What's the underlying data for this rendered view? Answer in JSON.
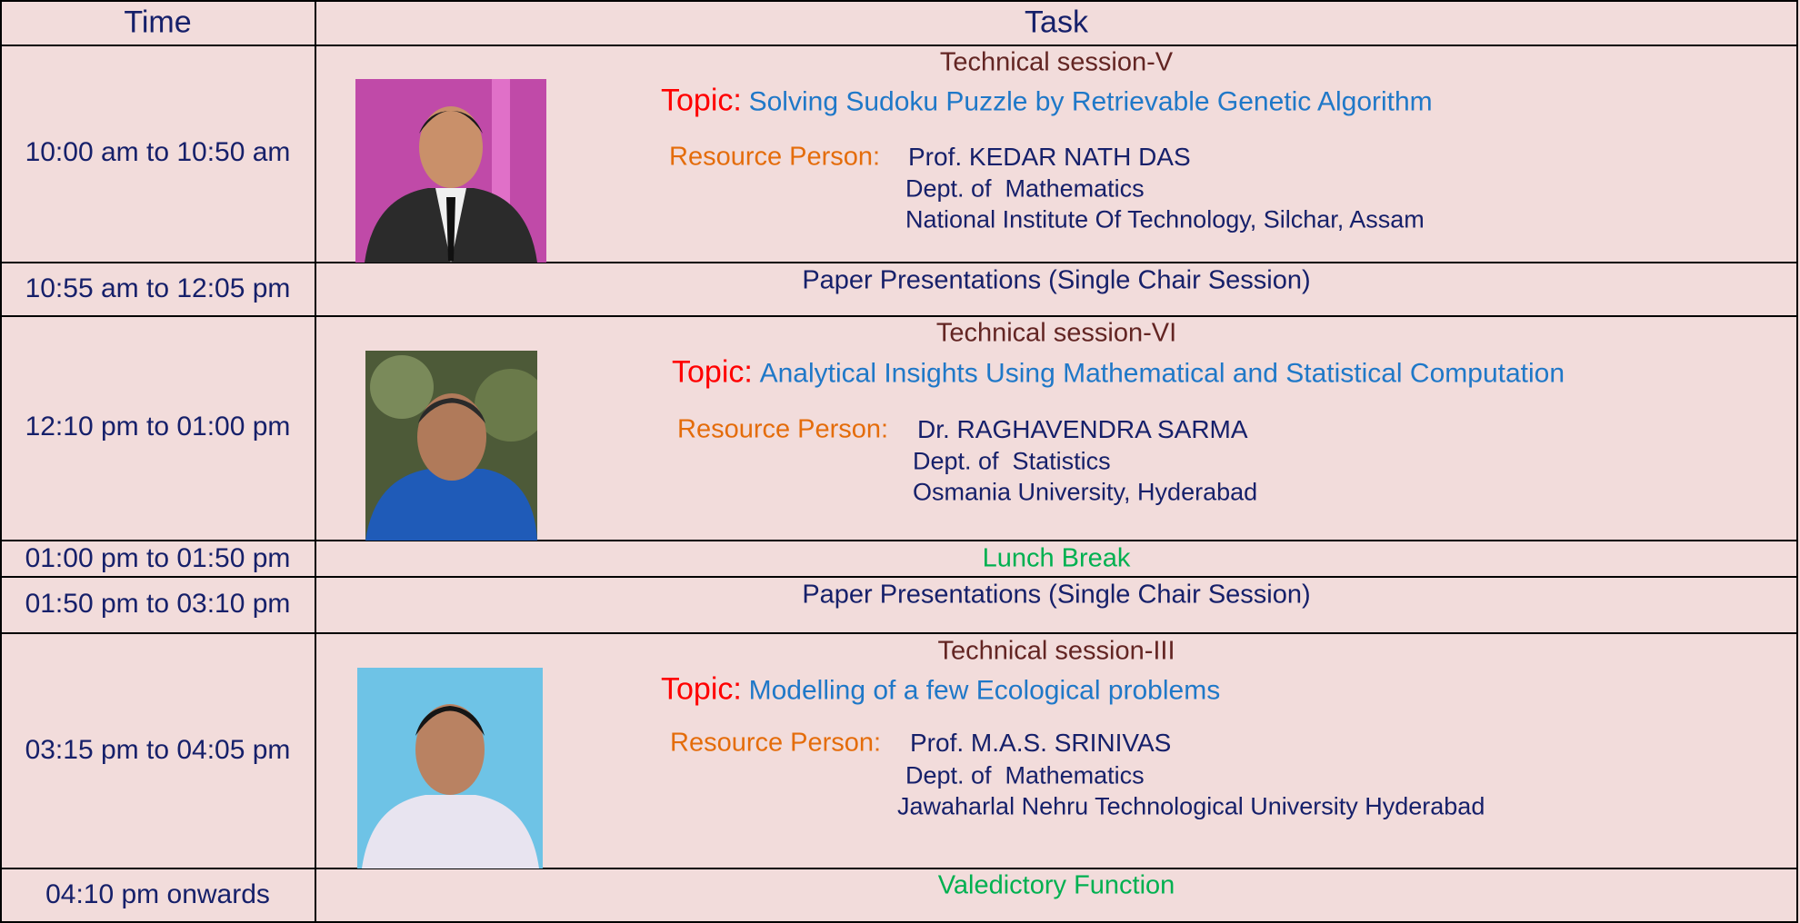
{
  "header": {
    "time": "Time",
    "task": "Task"
  },
  "rows": [
    {
      "time": "10:00 am to 10:50 am",
      "session": "Technical session-V",
      "topic_label": "Topic:",
      "topic": "Solving Sudoku Puzzle by Retrievable Genetic Algorithm",
      "resource_label": "Resource Person:",
      "person": "Prof. KEDAR NATH DAS",
      "dept": "Dept. of  Mathematics",
      "institute": "National Institute Of Technology, Silchar, Assam"
    },
    {
      "time": "10:55 am to 12:05 pm",
      "task": "Paper Presentations (Single Chair Session)"
    },
    {
      "time": "12:10 pm to 01:00 pm",
      "session": "Technical session-VI",
      "topic_label": "Topic:",
      "topic": "Analytical Insights Using Mathematical and Statistical Computation",
      "resource_label": "Resource Person:",
      "person": "Dr. RAGHAVENDRA SARMA",
      "dept": "Dept. of  Statistics",
      "institute": "Osmania University, Hyderabad"
    },
    {
      "time": "01:00 pm to 01:50 pm",
      "task": "Lunch Break"
    },
    {
      "time": "01:50 pm to 03:10 pm",
      "task": "Paper Presentations (Single Chair Session)"
    },
    {
      "time": "03:15 pm to 04:05 pm",
      "session": "Technical session-III",
      "topic_label": "Topic:",
      "topic": "Modelling of a few Ecological problems",
      "resource_label": "Resource Person:",
      "person": "Prof. M.A.S. SRINIVAS",
      "dept": "Dept. of  Mathematics",
      "institute": "Jawaharlal Nehru Technological University Hyderabad"
    },
    {
      "time": "04:10 pm onwards",
      "task": "Valedictory Function"
    }
  ]
}
